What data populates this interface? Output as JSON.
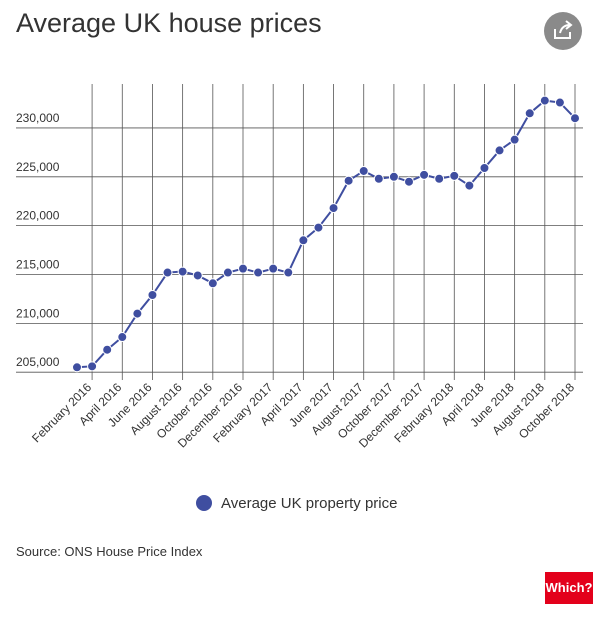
{
  "chart_data": {
    "type": "line",
    "title": "Average UK house prices",
    "categories": [
      null,
      "February 2016",
      null,
      "April 2016",
      null,
      "June 2016",
      null,
      "August 2016",
      null,
      "October 2016",
      null,
      "December 2016",
      null,
      "February 2017",
      null,
      "April 2017",
      null,
      "June 2017",
      null,
      "August 2017",
      null,
      "October 2017",
      null,
      "December 2017",
      null,
      "February 2018",
      null,
      "April 2018",
      null,
      "June 2018",
      null,
      "August 2018",
      null,
      "October 2018"
    ],
    "series": [
      {
        "name": "Average UK property price",
        "color": "#3f4ea0",
        "values": [
          205500,
          205600,
          207300,
          208600,
          211000,
          212900,
          215200,
          215300,
          214900,
          214100,
          215200,
          215600,
          215200,
          215600,
          215200,
          218500,
          219800,
          221800,
          224600,
          225600,
          224800,
          225000,
          224500,
          225200,
          224800,
          225100,
          224100,
          225900,
          227700,
          228800,
          231500,
          232800,
          232600,
          231000
        ]
      }
    ],
    "ylim": [
      204200,
      234500
    ],
    "yticks": [
      {
        "value": 205000,
        "label": "205,000"
      },
      {
        "value": 210000,
        "label": "210,000"
      },
      {
        "value": 215000,
        "label": "215,000"
      },
      {
        "value": 220000,
        "label": "220,000"
      },
      {
        "value": 225000,
        "label": "225,000"
      },
      {
        "value": 230000,
        "label": "230,000"
      }
    ],
    "grid": true,
    "legend": "bottom",
    "source": "Source: ONS House Price Index",
    "logo": "Which?"
  }
}
